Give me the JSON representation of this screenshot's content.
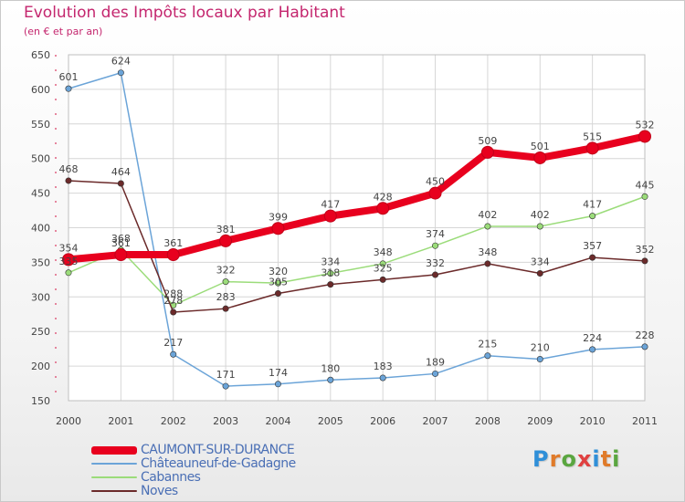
{
  "title": "Evolution des Impôts locaux par Habitant",
  "subtitle": "(en € et par an)",
  "logo": {
    "text": "Proxiti",
    "colors": [
      "#2f8fd8",
      "#e07b2a",
      "#5aa640",
      "#e04040",
      "#2f8fd8",
      "#e07b2a",
      "#5aa640"
    ]
  },
  "chart_data": {
    "type": "line",
    "x": [
      "2000",
      "2001",
      "2002",
      "2003",
      "2004",
      "2005",
      "2006",
      "2007",
      "2008",
      "2009",
      "2010",
      "2011"
    ],
    "ylim": [
      150,
      650
    ],
    "yticks": [
      150,
      200,
      250,
      300,
      350,
      400,
      450,
      500,
      550,
      600,
      650
    ],
    "grid": true,
    "legend_position": "bottom-left",
    "series": [
      {
        "name": "CAUMONT-SUR-DURANCE",
        "color": "#e8001e",
        "values": [
          354,
          361,
          361,
          381,
          399,
          417,
          428,
          450,
          509,
          501,
          515,
          532
        ]
      },
      {
        "name": "Châteauneuf-de-Gadagne",
        "color": "#6ba4d8",
        "values": [
          601,
          624,
          217,
          171,
          174,
          180,
          183,
          189,
          215,
          210,
          224,
          228
        ]
      },
      {
        "name": "Cabannes",
        "color": "#9bdc7a",
        "values": [
          335,
          368,
          288,
          322,
          320,
          334,
          348,
          374,
          402,
          402,
          417,
          445
        ]
      },
      {
        "name": "Noves",
        "color": "#6b2a2a",
        "values": [
          468,
          464,
          278,
          283,
          305,
          318,
          325,
          332,
          348,
          334,
          357,
          352
        ]
      }
    ]
  }
}
